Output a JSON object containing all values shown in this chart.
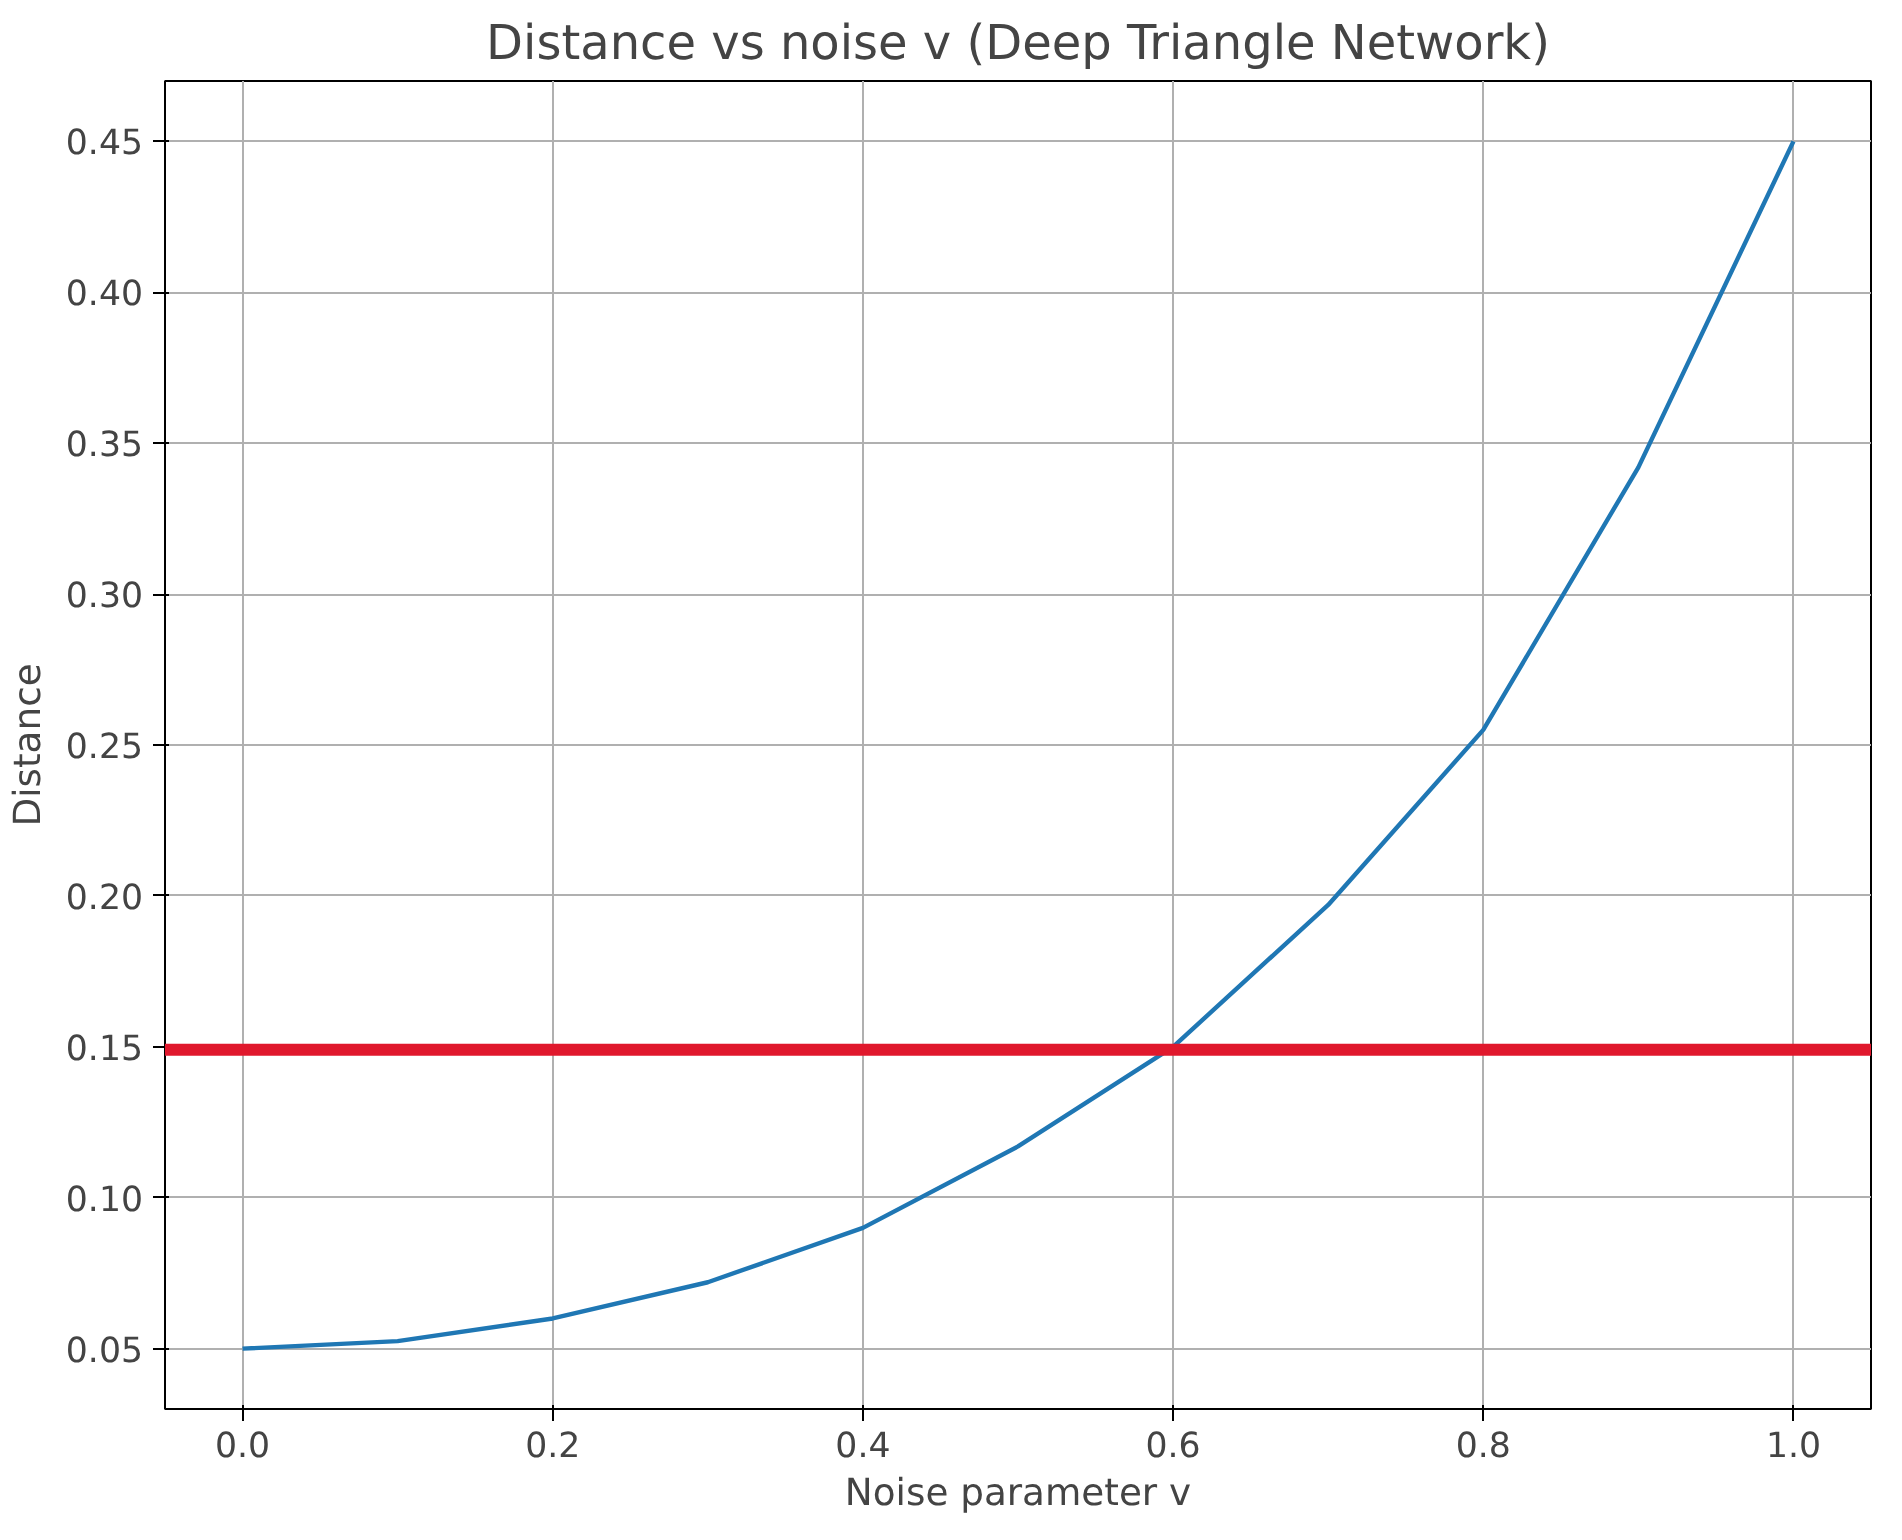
{
  "chart_data": {
    "type": "line",
    "title": "Distance vs noise v (Deep Triangle Network)",
    "xlabel": "Noise parameter v",
    "ylabel": "Distance",
    "x": [
      0,
      0.1,
      0.2,
      0.3,
      0.4,
      0.5,
      0.6,
      0.7,
      0.8,
      0.9,
      1.0
    ],
    "series": [
      {
        "color": "#1f77b4",
        "values": [
          0.05,
          0.0525,
          0.06,
          0.072,
          0.09,
          0.117,
          0.15,
          0.197,
          0.255,
          0.342,
          0.45
        ]
      }
    ],
    "xlim": [
      -0.05,
      1.05
    ],
    "xticks": [
      {
        "value": 0,
        "label": "0.0"
      },
      0.2,
      0.4,
      0.6,
      0.8,
      {
        "value": 1,
        "label": "1.0"
      }
    ],
    "ylim": [
      0.03,
      0.47
    ],
    "yticks": [
      0.05,
      {
        "value": 0.1,
        "label": "0.10"
      },
      0.15,
      {
        "value": 0.2,
        "label": "0.20"
      },
      0.25,
      {
        "value": 0.3,
        "label": "0.30"
      },
      0.35,
      {
        "value": 0.4,
        "label": "0.40"
      },
      0.45
    ],
    "ref_lines": [
      {
        "axis": "y",
        "value": 0.149,
        "color": "#e0182d"
      }
    ],
    "grid": true
  }
}
